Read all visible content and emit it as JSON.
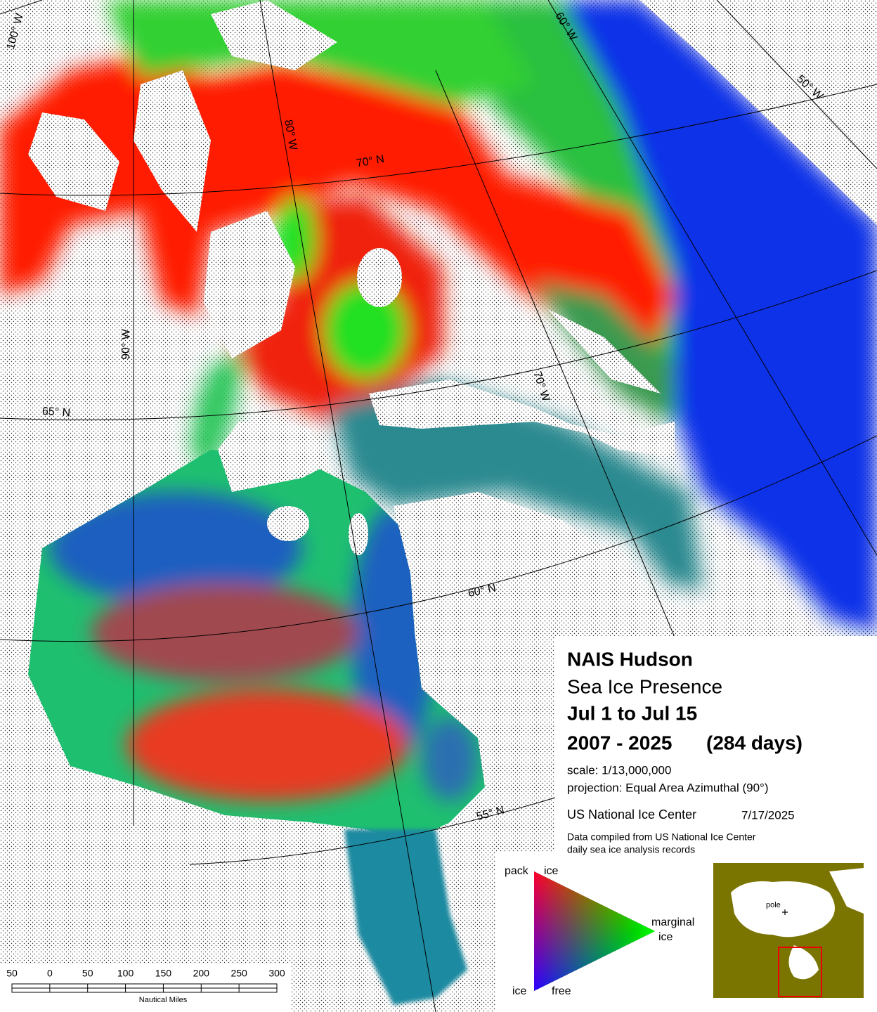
{
  "map": {
    "graticule_labels": [
      "100° W",
      "80° W",
      "60° W",
      "50° W",
      "90° W",
      "70° W",
      "70° N",
      "65° N",
      "60° N",
      "55° N"
    ]
  },
  "info": {
    "title": "NAIS Hudson",
    "subtitle": "Sea Ice Presence",
    "period": "Jul 1 to Jul 15",
    "years": "2007 - 2025",
    "days": "(284 days)",
    "scale": "scale: 1/13,000,000",
    "projection": "projection: Equal Area Azimuthal (90°)",
    "source": "US National Ice Center",
    "date": "7/17/2025",
    "note": [
      "Data compiled from US National Ice Center",
      "daily sea ice analysis records"
    ]
  },
  "legend": {
    "pack_ice": [
      "pack",
      "ice"
    ],
    "marginal_ice": [
      "marginal",
      "ice"
    ],
    "ice_free": [
      "ice",
      "free"
    ]
  },
  "inset": {
    "pole": "pole"
  },
  "scale_bar": {
    "labels": [
      "50",
      "0",
      "50",
      "100",
      "150",
      "200",
      "250",
      "300"
    ],
    "unit": "Nautical Miles"
  }
}
